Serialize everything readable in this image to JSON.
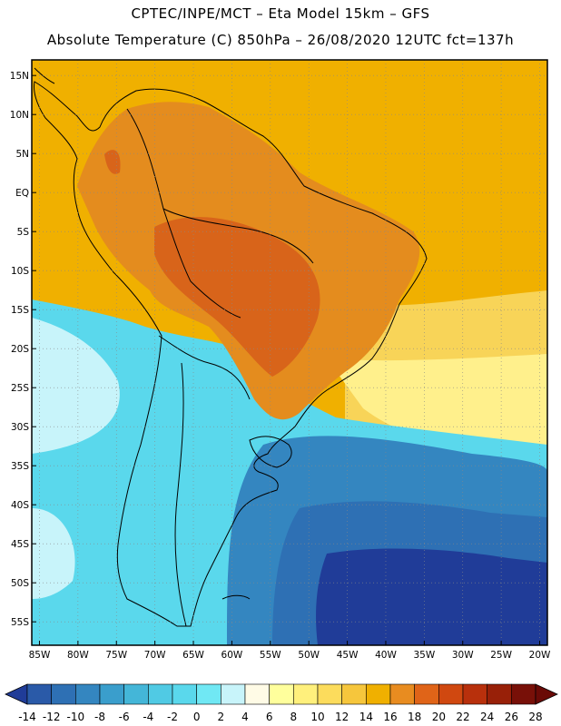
{
  "header": {
    "line1": "CPTEC/INPE/MCT –  Eta Model 15km – GFS",
    "line2": "Absolute Temperature (C) 850hPa – 26/08/2020 12UTC fct=137h"
  },
  "map": {
    "lat_labels": [
      {
        "text": "15N",
        "lat": 15
      },
      {
        "text": "10N",
        "lat": 10
      },
      {
        "text": "5N",
        "lat": 5
      },
      {
        "text": "EQ",
        "lat": 0
      },
      {
        "text": "5S",
        "lat": -5
      },
      {
        "text": "10S",
        "lat": -10
      },
      {
        "text": "15S",
        "lat": -15
      },
      {
        "text": "20S",
        "lat": -20
      },
      {
        "text": "25S",
        "lat": -25
      },
      {
        "text": "30S",
        "lat": -30
      },
      {
        "text": "35S",
        "lat": -35
      },
      {
        "text": "40S",
        "lat": -40
      },
      {
        "text": "45S",
        "lat": -45
      },
      {
        "text": "50S",
        "lat": -50
      },
      {
        "text": "55S",
        "lat": -55
      }
    ],
    "lon_labels": [
      {
        "text": "85W",
        "lon": -85
      },
      {
        "text": "80W",
        "lon": -80
      },
      {
        "text": "75W",
        "lon": -75
      },
      {
        "text": "70W",
        "lon": -70
      },
      {
        "text": "65W",
        "lon": -65
      },
      {
        "text": "60W",
        "lon": -60
      },
      {
        "text": "55W",
        "lon": -55
      },
      {
        "text": "50W",
        "lon": -50
      },
      {
        "text": "45W",
        "lon": -45
      },
      {
        "text": "40W",
        "lon": -40
      },
      {
        "text": "35W",
        "lon": -35
      },
      {
        "text": "30W",
        "lon": -30
      },
      {
        "text": "25W",
        "lon": -25
      },
      {
        "text": "20W",
        "lon": -20
      }
    ],
    "lon_range": [
      -86,
      -19
    ],
    "lat_range": [
      -58,
      17
    ],
    "gridlines": true,
    "colors": {
      "ocean_warm": "#f0b000",
      "land_warm": "#e48c1e",
      "land_hot": "#d8641a",
      "subtrop_yellow": "#f8d458",
      "pale_yellow": "#fff08c",
      "cyan": "#5ad8ec",
      "light_cyan": "#c8f4fa",
      "mid_blue": "#2e9ed0",
      "blue": "#2870b8",
      "deep_blue": "#203c98"
    }
  },
  "colorbar": {
    "labels": [
      "-14",
      "-12",
      "-10",
      "-8",
      "-6",
      "-4",
      "-2",
      "0",
      "2",
      "4",
      "6",
      "8",
      "10",
      "12",
      "14",
      "16",
      "18",
      "20",
      "22",
      "24",
      "26",
      "28"
    ],
    "colors": [
      "#203c98",
      "#2a5aa8",
      "#2e70b4",
      "#3486c0",
      "#3a9ecc",
      "#44b6d8",
      "#50cae4",
      "#5ad8ec",
      "#70e8f4",
      "#c8f4fa",
      "#fffbe6",
      "#ffff9c",
      "#fff07c",
      "#fcdc5c",
      "#f6c63c",
      "#f0b000",
      "#e88c20",
      "#e06418",
      "#d04810",
      "#b8300c",
      "#982008",
      "#781008",
      "#6a0a06"
    ]
  }
}
